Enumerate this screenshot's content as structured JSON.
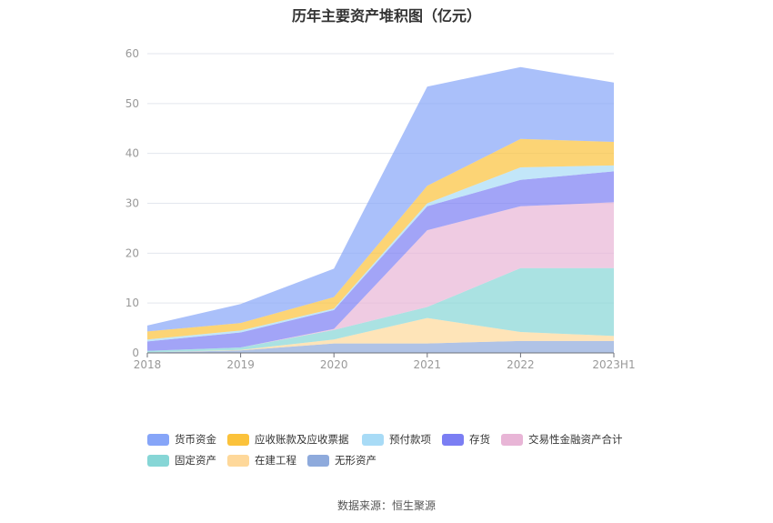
{
  "chart_data": {
    "type": "area",
    "stacked": true,
    "title": "历年主要资产堆积图（亿元）",
    "categories": [
      "2018",
      "2019",
      "2020",
      "2021",
      "2022",
      "2023H1"
    ],
    "ylim": [
      0,
      60
    ],
    "yticks": [
      0,
      10,
      20,
      30,
      40,
      50,
      60
    ],
    "grid": true,
    "legend_position": "bottom",
    "series": [
      {
        "name": "无形资产",
        "color": "#8eaadc",
        "values": [
          0.1,
          0.5,
          1.9,
          1.9,
          2.4,
          2.4
        ]
      },
      {
        "name": "在建工程",
        "color": "#fed89a",
        "values": [
          0,
          0.1,
          0.8,
          5.1,
          1.8,
          1.0
        ]
      },
      {
        "name": "固定资产",
        "color": "#86d6d6",
        "values": [
          0.3,
          0.5,
          1.9,
          2.2,
          12.8,
          13.6
        ]
      },
      {
        "name": "交易性金融资产合计",
        "color": "#e8b5d6",
        "values": [
          0,
          0,
          0.2,
          15.4,
          12.4,
          13.2
        ]
      },
      {
        "name": "存货",
        "color": "#7b7ef3",
        "values": [
          1.9,
          3.0,
          3.8,
          4.8,
          5.3,
          6.2
        ]
      },
      {
        "name": "预付款项",
        "color": "#a8dbf6",
        "values": [
          0.4,
          0.4,
          0.3,
          0.6,
          2.5,
          1.2
        ]
      },
      {
        "name": "应收账款及应收票据",
        "color": "#fbc23b",
        "values": [
          1.6,
          1.5,
          2.3,
          3.5,
          5.7,
          4.7
        ]
      },
      {
        "name": "货币资金",
        "color": "#86a5f8",
        "values": [
          1.2,
          3.8,
          5.7,
          19.9,
          14.4,
          11.9
        ]
      }
    ]
  },
  "legend_order": [
    7,
    6,
    5,
    4,
    3,
    2,
    1,
    0
  ],
  "source": "数据来源：恒生聚源"
}
